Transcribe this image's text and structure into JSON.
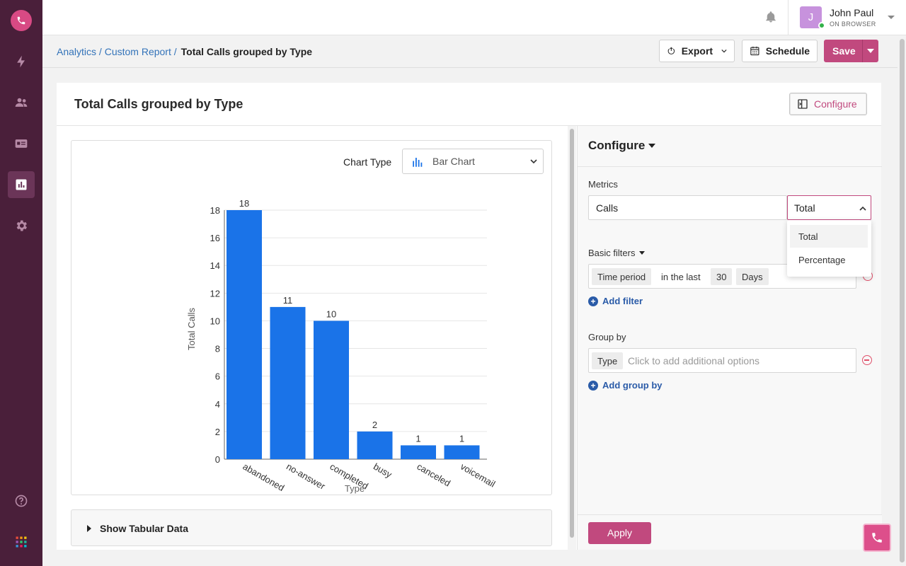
{
  "header": {
    "user_initial": "J",
    "user_name": "John Paul",
    "user_status": "ON BROWSER"
  },
  "breadcrumb": {
    "analytics": "Analytics",
    "custom_report": "Custom Report",
    "current": "Total Calls grouped by Type"
  },
  "toolbar": {
    "export_label": "Export",
    "schedule_label": "Schedule",
    "save_label": "Save"
  },
  "report": {
    "title": "Total Calls grouped by Type",
    "configure_button": "Configure",
    "chart_type_label": "Chart Type",
    "chart_type_value": "Bar Chart",
    "tabular_toggle": "Show Tabular Data"
  },
  "configure": {
    "heading": "Configure",
    "metrics_label": "Metrics",
    "metric_value": "Calls",
    "aggregation_value": "Total",
    "aggregation_options": [
      "Total",
      "Percentage"
    ],
    "basic_filters_label": "Basic filters",
    "filter": {
      "field": "Time period",
      "operator": "in the last",
      "amount": "30",
      "unit": "Days"
    },
    "add_filter": "Add filter",
    "group_by_label": "Group by",
    "group_by_value": "Type",
    "group_by_placeholder": "Click to add additional options",
    "add_group_by": "Add group by",
    "apply_label": "Apply"
  },
  "colors": {
    "brand": "#c1497e",
    "sidebar": "#4a1f3a",
    "bar": "#1a73e8"
  },
  "chart_data": {
    "type": "bar",
    "categories": [
      "abandoned",
      "no-answer",
      "completed",
      "busy",
      "canceled",
      "voicemail"
    ],
    "values": [
      18,
      11,
      10,
      2,
      1,
      1
    ],
    "title": "",
    "xlabel": "Type",
    "ylabel": "Total Calls",
    "ylim": [
      0,
      18
    ],
    "yticks": [
      0,
      2,
      4,
      6,
      8,
      10,
      12,
      14,
      16,
      18
    ],
    "grid": true,
    "data_labels": true
  }
}
